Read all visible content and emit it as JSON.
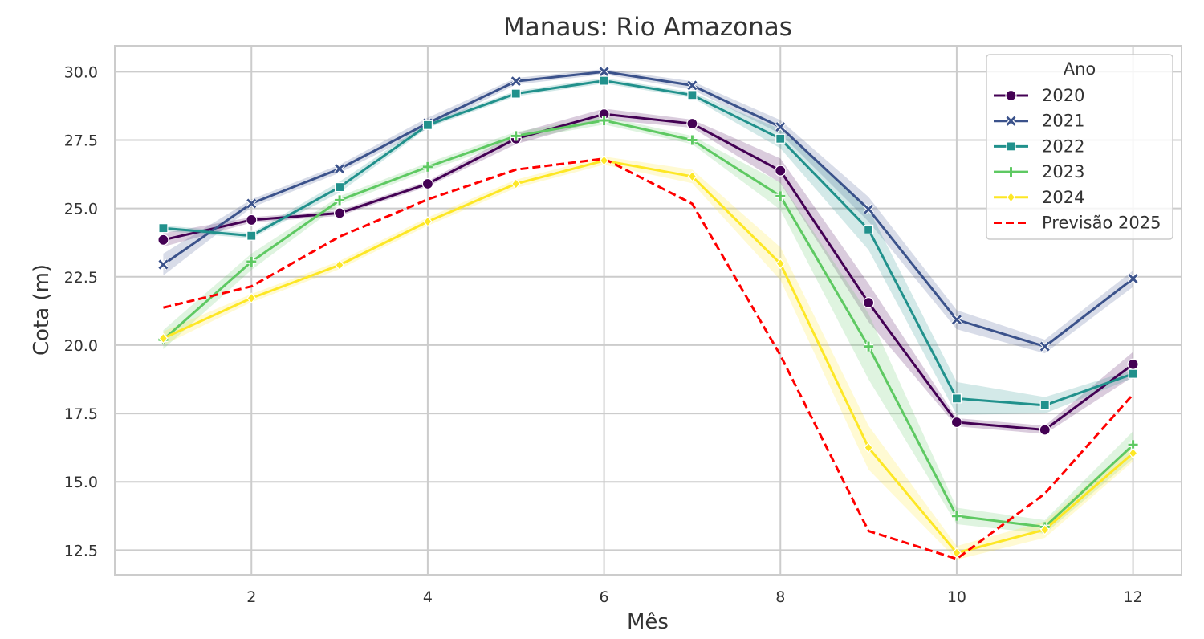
{
  "chart_data": {
    "type": "line",
    "title": "Manaus: Rio Amazonas",
    "xlabel": "Mês",
    "ylabel": "Cota (m)",
    "xlim": [
      0.45,
      12.55
    ],
    "ylim": [
      11.6,
      30.95
    ],
    "x": [
      1,
      2,
      3,
      4,
      5,
      6,
      7,
      8,
      9,
      10,
      11,
      12
    ],
    "xticks": [
      2,
      4,
      6,
      8,
      10,
      12
    ],
    "xtick_labels": [
      "2",
      "4",
      "6",
      "8",
      "10",
      "12"
    ],
    "yticks": [
      12.5,
      15.0,
      17.5,
      20.0,
      22.5,
      25.0,
      27.5,
      30.0
    ],
    "ytick_labels": [
      "12.5",
      "15.0",
      "17.5",
      "20.0",
      "22.5",
      "25.0",
      "27.5",
      "30.0"
    ],
    "grid": true,
    "legend": {
      "title": "Ano",
      "placement": "top-right"
    },
    "series": [
      {
        "name": "2020",
        "color": "#440154",
        "marker": "circle",
        "style": "solid",
        "values": [
          23.85,
          24.58,
          24.83,
          25.9,
          27.55,
          28.45,
          28.1,
          26.38,
          21.55,
          17.18,
          16.9,
          19.3
        ],
        "ci": [
          0.25,
          0.1,
          0.1,
          0.1,
          0.2,
          0.2,
          0.15,
          0.45,
          0.7,
          0.15,
          0.15,
          0.45
        ]
      },
      {
        "name": "2021",
        "color": "#3b528b",
        "marker": "x",
        "style": "solid",
        "values": [
          22.95,
          25.18,
          26.45,
          28.12,
          29.65,
          30.0,
          29.5,
          27.98,
          24.97,
          20.93,
          19.95,
          22.43
        ],
        "ci": [
          0.4,
          0.15,
          0.15,
          0.2,
          0.12,
          0.1,
          0.15,
          0.25,
          0.45,
          0.35,
          0.25,
          0.3
        ]
      },
      {
        "name": "2022",
        "color": "#21918c",
        "marker": "square",
        "style": "solid",
        "values": [
          24.28,
          24.0,
          25.78,
          28.05,
          29.2,
          29.67,
          29.15,
          27.55,
          24.23,
          18.05,
          17.8,
          18.95
        ],
        "ci": [
          0.1,
          0.1,
          0.2,
          0.1,
          0.1,
          0.1,
          0.1,
          0.35,
          0.75,
          0.6,
          0.3,
          0.15
        ]
      },
      {
        "name": "2023",
        "color": "#5ec962",
        "marker": "plus",
        "style": "solid",
        "values": [
          20.2,
          23.05,
          25.3,
          26.52,
          27.65,
          28.22,
          27.5,
          25.45,
          19.95,
          13.75,
          13.35,
          16.35
        ],
        "ci": [
          0.35,
          0.3,
          0.15,
          0.15,
          0.15,
          0.15,
          0.15,
          0.5,
          1.2,
          0.3,
          0.25,
          0.5
        ]
      },
      {
        "name": "2024",
        "color": "#fde725",
        "marker": "diamond",
        "style": "solid",
        "values": [
          20.25,
          21.72,
          22.93,
          24.52,
          25.9,
          26.75,
          26.17,
          22.98,
          16.25,
          12.4,
          13.25,
          16.05
        ],
        "ci": [
          0.25,
          0.15,
          0.15,
          0.15,
          0.15,
          0.15,
          0.25,
          0.6,
          0.8,
          0.25,
          0.3,
          0.3
        ]
      },
      {
        "name": "Previsão 2025",
        "color": "#ff0000",
        "marker": "none",
        "style": "dashed",
        "values": [
          21.37,
          22.15,
          23.97,
          25.33,
          26.42,
          26.82,
          25.17,
          19.63,
          13.2,
          12.18,
          14.57,
          18.2
        ]
      }
    ]
  }
}
